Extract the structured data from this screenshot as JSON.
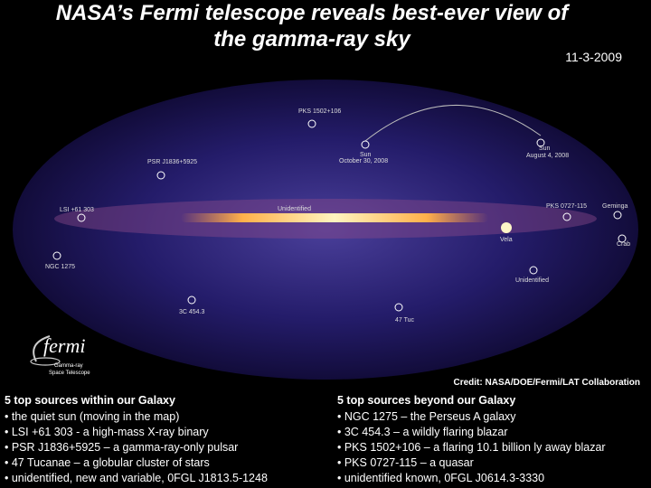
{
  "header": {
    "title_lines": [
      "NASA’s Fermi telescope reveals best-ever view of",
      "the gamma-ray sky"
    ],
    "date": "11-3-2009"
  },
  "map": {
    "labels": [
      "PKS 1502+106",
      "PSR J1836+5925",
      "Sun",
      "October 30, 2008",
      "Sun",
      "August 4, 2008",
      "LSI +61 303",
      "Unidentified",
      "PKS 0727-115",
      "Geminga",
      "Vela",
      "Crab",
      "NGC 1275",
      "Unidentified",
      "3C 454.3",
      "47 Tuc"
    ],
    "logo": {
      "name": "fermi",
      "subtitle_lines": [
        "Gamma-ray",
        "Space Telescope"
      ]
    },
    "credit": "Credit: NASA/DOE/Fermi/LAT Collaboration"
  },
  "columns": [
    {
      "heading": "5 top sources within our Galaxy",
      "items": [
        "• the quiet sun (moving in the map)",
        "• LSI +61 303 - a high-mass X-ray binary",
        "• PSR J1836+5925 – a gamma-ray-only pulsar",
        "• 47 Tucanae – a globular cluster of stars",
        "• unidentified, new and variable, 0FGL J1813.5-1248"
      ]
    },
    {
      "heading": "5 top sources beyond our Galaxy",
      "items": [
        "• NGC 1275 – the Perseus A galaxy",
        "• 3C 454.3 – a wildly flaring blazar",
        "• PKS 1502+106 – a flaring 10.1 billion ly away blazar",
        "• PKS 0727-115 – a quasar",
        "•  unidentified known, 0FGL J0614.3-3330"
      ]
    }
  ]
}
